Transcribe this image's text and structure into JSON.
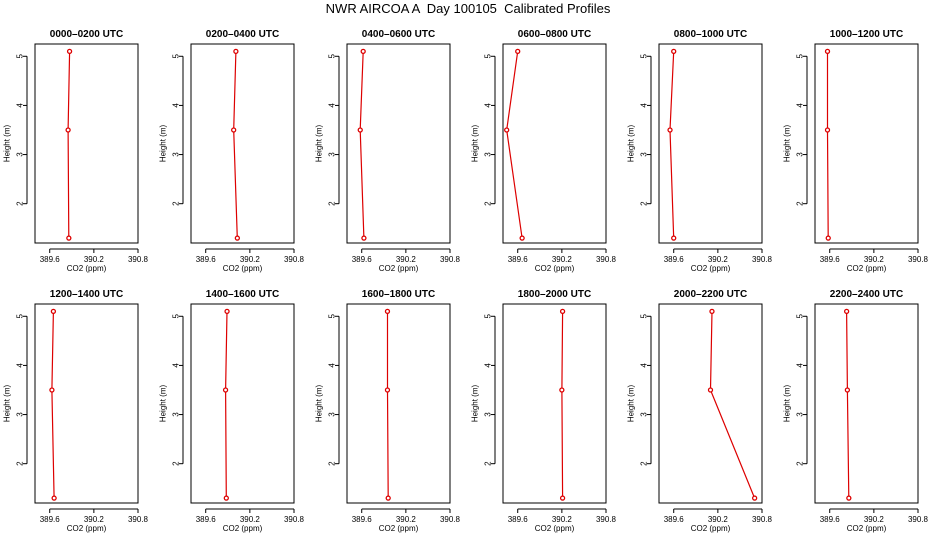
{
  "title": "NWR AIRCOA A  Day 100105  Calibrated Profiles",
  "colors": {
    "series": "#dd0000",
    "axis": "#000000",
    "background": "#ffffff"
  },
  "chart_data": {
    "type": "line",
    "xlabel": "CO2 (ppm)",
    "ylabel": "Height (m)",
    "xlim": [
      389.4,
      390.8
    ],
    "xticks": [
      389.6,
      390.2,
      390.8
    ],
    "xtick_labels": [
      "389.6",
      "390.2",
      "390.8"
    ],
    "ylim": [
      1.2,
      5.25
    ],
    "yticks": [
      2,
      3,
      4,
      5
    ],
    "ytick_labels": [
      "2",
      "3",
      "4",
      "5"
    ],
    "heights": [
      1.3,
      3.5,
      5.1
    ],
    "panels": [
      {
        "title": "0000–0200 UTC",
        "co2": [
          389.86,
          389.85,
          389.87
        ]
      },
      {
        "title": "0200–0400 UTC",
        "co2": [
          390.03,
          389.98,
          390.01
        ]
      },
      {
        "title": "0400–0600 UTC",
        "co2": [
          389.63,
          389.58,
          389.62
        ]
      },
      {
        "title": "0600–0800 UTC",
        "co2": [
          389.66,
          389.45,
          389.6
        ]
      },
      {
        "title": "0800–1000 UTC",
        "co2": [
          389.6,
          389.55,
          389.6
        ]
      },
      {
        "title": "1000–1200 UTC",
        "co2": [
          389.58,
          389.57,
          389.57
        ]
      },
      {
        "title": "1200–1400 UTC",
        "co2": [
          389.66,
          389.63,
          389.65
        ]
      },
      {
        "title": "1400–1600 UTC",
        "co2": [
          389.88,
          389.87,
          389.89
        ]
      },
      {
        "title": "1600–1800 UTC",
        "co2": [
          389.96,
          389.95,
          389.95
        ]
      },
      {
        "title": "1800–2000 UTC",
        "co2": [
          390.21,
          390.2,
          390.21
        ]
      },
      {
        "title": "2000–2200 UTC",
        "co2": [
          390.7,
          390.1,
          390.12
        ]
      },
      {
        "title": "2200–2400 UTC",
        "co2": [
          389.86,
          389.84,
          389.83
        ]
      }
    ]
  }
}
